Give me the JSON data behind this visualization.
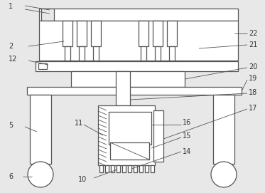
{
  "bg_color": "#e8e8e8",
  "line_color": "#555555",
  "lw": 0.9,
  "fig_width": 3.73,
  "fig_height": 2.71,
  "dpi": 100
}
